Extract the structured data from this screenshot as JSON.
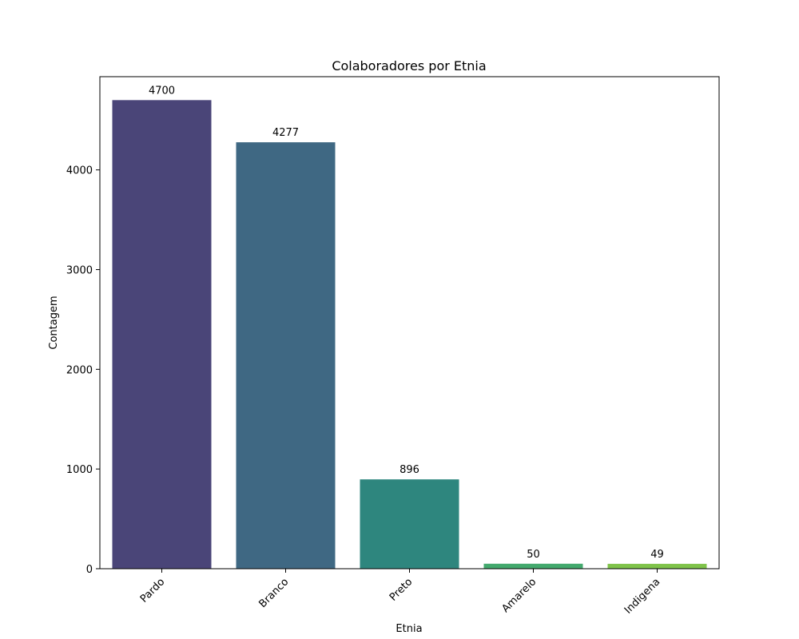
{
  "chart_data": {
    "type": "bar",
    "title": "Colaboradores por Etnia",
    "xlabel": "Etnia",
    "ylabel": "Contagem",
    "categories": [
      "Pardo",
      "Branco",
      "Preto",
      "Amarelo",
      "Indigena"
    ],
    "values": [
      4700,
      4277,
      896,
      50,
      49
    ],
    "colors": [
      "#4a4578",
      "#3f6883",
      "#2e867e",
      "#43a96d",
      "#7fc34a"
    ],
    "ylim": [
      0,
      4935
    ],
    "yticks": [
      0,
      1000,
      2000,
      3000,
      4000
    ],
    "grid": false,
    "legend": "none"
  }
}
